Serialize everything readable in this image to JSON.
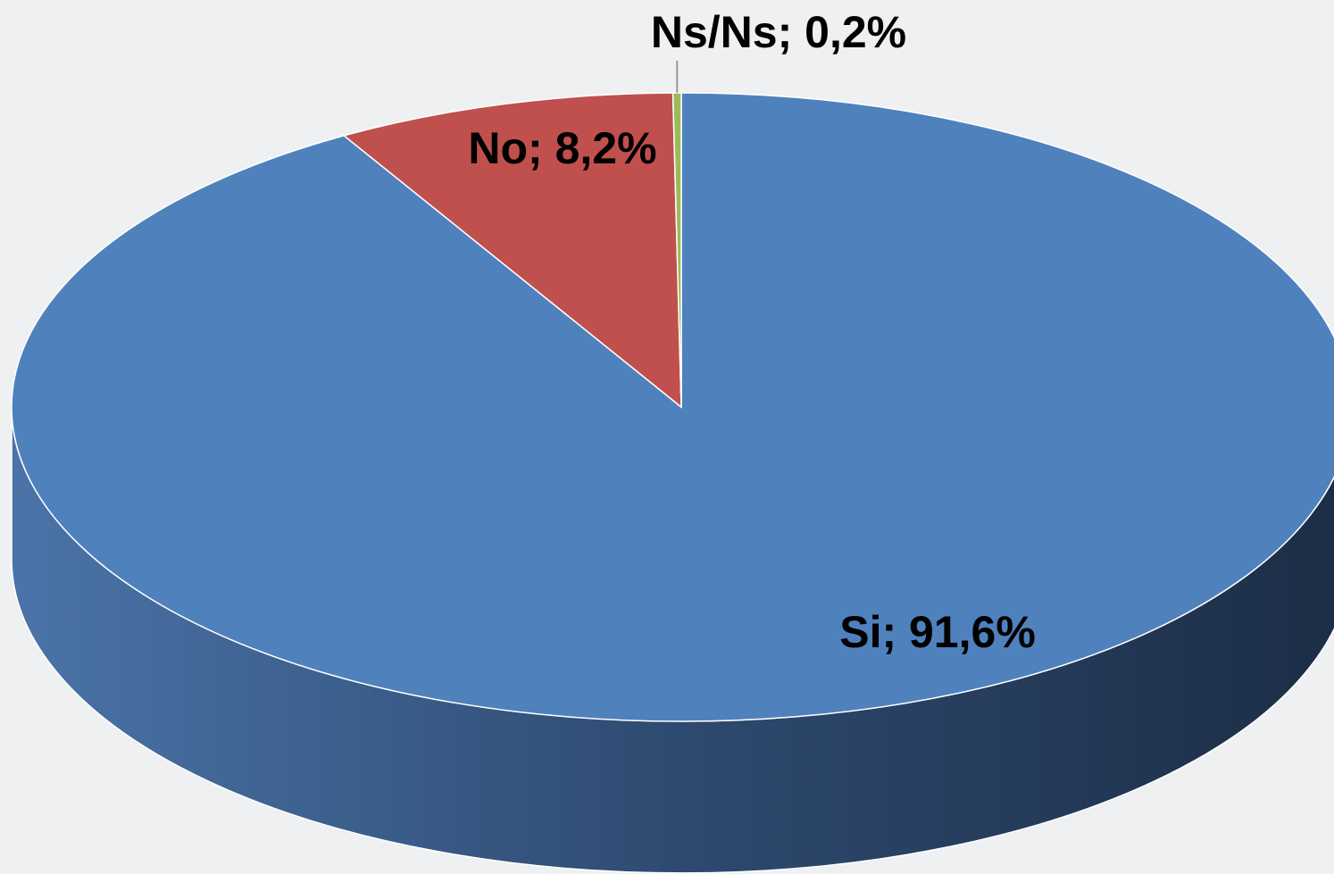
{
  "chart_data": {
    "type": "pie",
    "values": [
      91.6,
      8.2,
      0.2
    ],
    "value_labels": [
      "Si; 91,6%",
      "No; 8,2%",
      "Ns/Ns; 0,2%"
    ],
    "colors": [
      "#4f81bd",
      "#c0504d",
      "#9bbb59"
    ]
  }
}
